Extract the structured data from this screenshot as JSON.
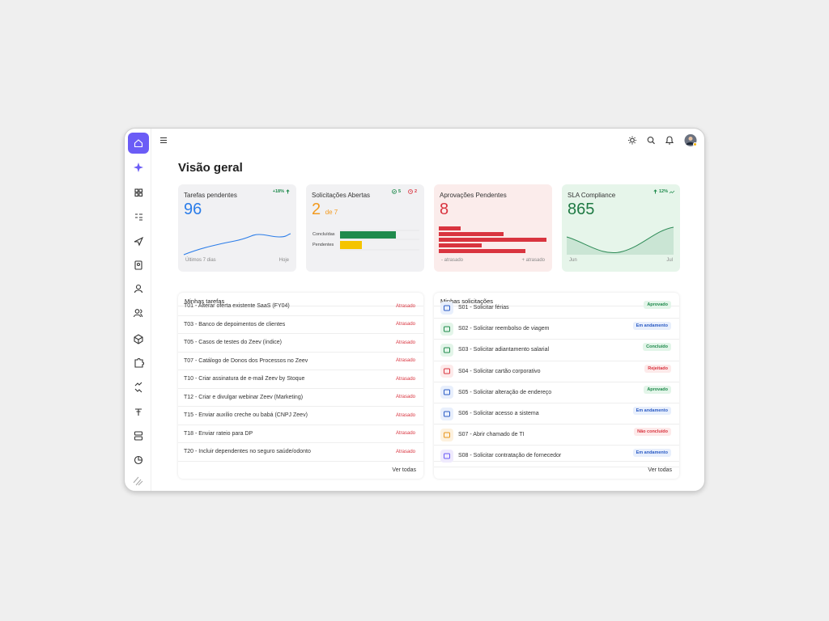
{
  "header": {
    "title": "Visão geral"
  },
  "cards": [
    {
      "title": "Tarefas pendentes",
      "value": 96,
      "badge": "+18%",
      "footer_left": "Últimos 7 dias",
      "footer_right": "Hoje"
    },
    {
      "title": "Solicitações Abertas",
      "value": 2,
      "value_suffix": "de 7",
      "badge_done": "5",
      "badge_late": "2",
      "legend": [
        "Concluídas",
        "Pendentes"
      ]
    },
    {
      "title": "Aprovações Pendentes",
      "value": 8,
      "footer_left": "- atrasado",
      "footer_right": "+ atrasado"
    },
    {
      "title": "SLA Compliance",
      "value": 865,
      "badge": "12%",
      "footer_left": "Jun",
      "footer_right": "Jul"
    }
  ],
  "tasks": {
    "title": "Minhas tarefas",
    "footer": "Ver todas",
    "rows": [
      {
        "label": "T01 - Alterar oferta existente SaaS (FY04)",
        "status": "Atrasado"
      },
      {
        "label": "T03 - Banco de depoimentos de clientes",
        "status": "Atrasado"
      },
      {
        "label": "T05 - Casos de testes do Zeev (índice)",
        "status": "Atrasado"
      },
      {
        "label": "T07 - Catálogo de Donos dos Processos no Zeev",
        "status": "Atrasado"
      },
      {
        "label": "T10 - Criar assinatura de e-mail Zeev by Stoque",
        "status": "Atrasado"
      },
      {
        "label": "T12 - Criar e divulgar webinar Zeev (Marketing)",
        "status": "Atrasado"
      },
      {
        "label": "T15 - Enviar auxílio creche ou babá (CNPJ Zeev)",
        "status": "Atrasado"
      },
      {
        "label": "T18 - Enviar rateio para DP",
        "status": "Atrasado"
      },
      {
        "label": "T20 - Incluir dependentes no seguro saúde/odonto",
        "status": "Atrasado"
      }
    ]
  },
  "requests": {
    "title": "Minhas solicitações",
    "footer": "Ver todas",
    "rows": [
      {
        "label": "S01 - Solicitar férias",
        "status": "Aprovado"
      },
      {
        "label": "S02 - Solicitar reembolso de viagem",
        "status": "Em andamento"
      },
      {
        "label": "S03 - Solicitar adiantamento salarial",
        "status": "Concluído"
      },
      {
        "label": "S04 - Solicitar cartão corporativo",
        "status": "Rejeitado"
      },
      {
        "label": "S05 - Solicitar alteração de endereço",
        "status": "Aprovado"
      },
      {
        "label": "S06 - Solicitar acesso a sistema",
        "status": "Em andamento"
      },
      {
        "label": "S07 - Abrir chamado de TI",
        "status": "Não concluído"
      },
      {
        "label": "S08 - Solicitar contratação de fornecedor",
        "status": "Em andamento"
      }
    ]
  }
}
